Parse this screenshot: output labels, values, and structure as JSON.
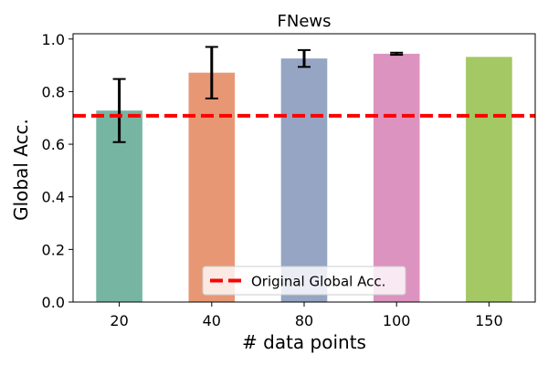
{
  "chart_data": {
    "type": "bar",
    "title": "FNews",
    "xlabel": "# data points",
    "ylabel": "Global Acc.",
    "categories": [
      "20",
      "40",
      "80",
      "100",
      "150"
    ],
    "values": [
      0.728,
      0.872,
      0.926,
      0.944,
      0.932
    ],
    "errors": [
      0.12,
      0.098,
      0.032,
      0.004,
      null
    ],
    "colors": [
      "#76b5a2",
      "#e89774",
      "#95a5c3",
      "#dc93bf",
      "#a4c863"
    ],
    "ylim": [
      0,
      1.02
    ],
    "yticks": [
      "0.0",
      "0.2",
      "0.4",
      "0.6",
      "0.8",
      "1.0"
    ],
    "reference_line": {
      "label": "Original Global Acc.",
      "value": 0.708,
      "color": "#ff0000",
      "style": "dashed"
    },
    "legend_position": "lower-center",
    "grid": false
  }
}
